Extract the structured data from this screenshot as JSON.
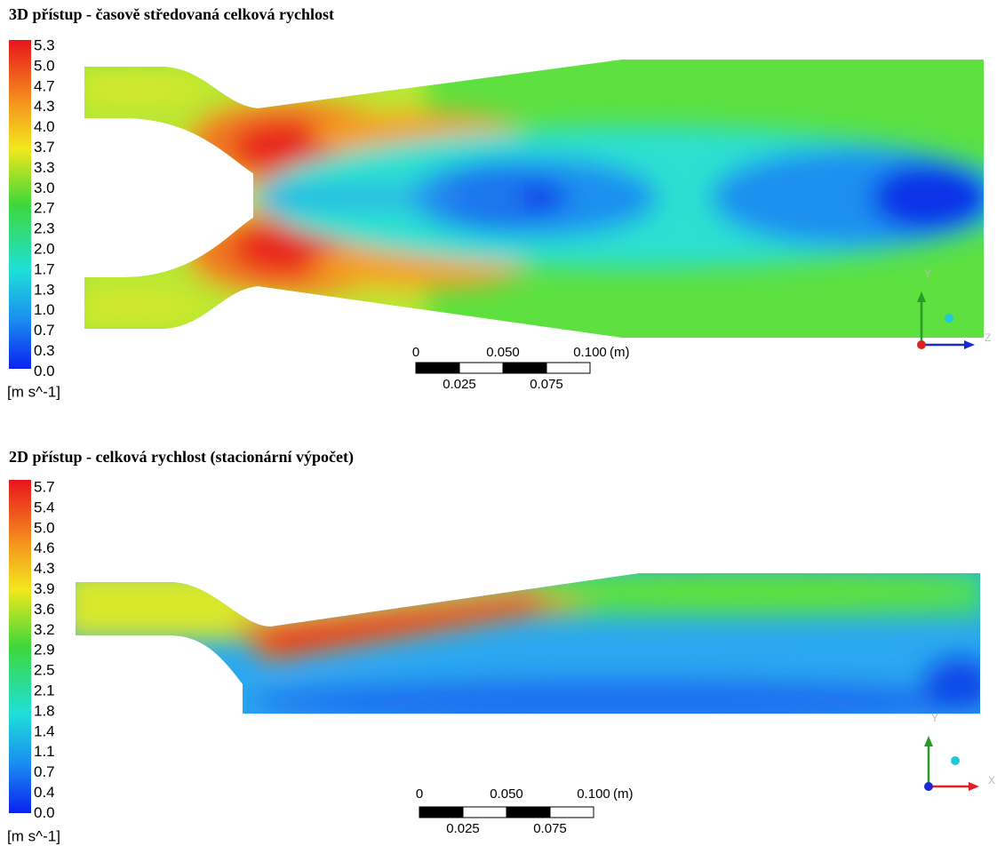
{
  "panels": [
    {
      "title": "3D přístup - časově středovaná celková rychlost",
      "legend": {
        "ticks": [
          "5.3",
          "5.0",
          "4.7",
          "4.3",
          "4.0",
          "3.7",
          "3.3",
          "3.0",
          "2.7",
          "2.3",
          "2.0",
          "1.7",
          "1.3",
          "1.0",
          "0.7",
          "0.3",
          "0.0"
        ],
        "unit": "[m s^-1]"
      },
      "scale": {
        "top": [
          "0",
          "0.050",
          "0.100",
          "(m)"
        ],
        "bottom": [
          "0.025",
          "0.075"
        ]
      },
      "axes": [
        "Y",
        "Z"
      ]
    },
    {
      "title": "2D přístup - celková rychlost (stacionární výpočet)",
      "legend": {
        "ticks": [
          "5.7",
          "5.4",
          "5.0",
          "4.6",
          "4.3",
          "3.9",
          "3.6",
          "3.2",
          "2.9",
          "2.5",
          "2.1",
          "1.8",
          "1.4",
          "1.1",
          "0.7",
          "0.4",
          "0.0"
        ],
        "unit": "[m s^-1]"
      },
      "scale": {
        "top": [
          "0",
          "0.050",
          "0.100",
          "(m)"
        ],
        "bottom": [
          "0.025",
          "0.075"
        ]
      },
      "axes": [
        "Y",
        "X"
      ]
    }
  ]
}
